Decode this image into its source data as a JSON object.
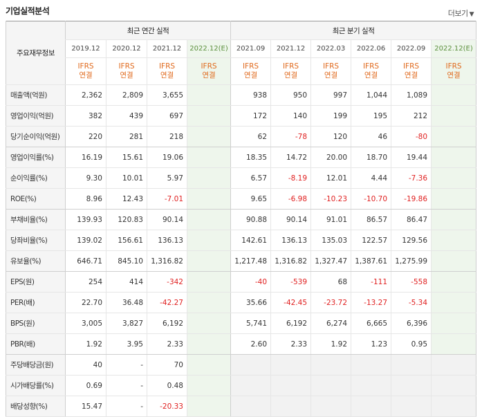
{
  "header": {
    "title": "기업실적분석",
    "more_label": "더보기",
    "more_arrow": "▼"
  },
  "groups": {
    "key_label": "주요재무정보",
    "annual": "최근 연간 실적",
    "quarterly": "최근 분기 실적"
  },
  "periods": [
    "2019.12",
    "2020.12",
    "2021.12",
    "2022.12(E)",
    "2021.09",
    "2021.12",
    "2022.03",
    "2022.06",
    "2022.09",
    "2022.12(E)"
  ],
  "ifrs": {
    "line1": "IFRS",
    "line2": "연결"
  },
  "rows": [
    {
      "label": "매출액(억원)",
      "cells": [
        "2,362",
        "2,809",
        "3,655",
        "",
        "938",
        "950",
        "997",
        "1,044",
        "1,089",
        ""
      ]
    },
    {
      "label": "영업이익(억원)",
      "cells": [
        "382",
        "439",
        "697",
        "",
        "172",
        "140",
        "199",
        "195",
        "212",
        ""
      ]
    },
    {
      "label": "당기순이익(억원)",
      "cells": [
        "220",
        "281",
        "218",
        "",
        "62",
        "-78",
        "120",
        "46",
        "-80",
        ""
      ]
    },
    {
      "label": "영업이익률(%)",
      "cells": [
        "16.19",
        "15.61",
        "19.06",
        "",
        "18.35",
        "14.72",
        "20.00",
        "18.70",
        "19.44",
        ""
      ]
    },
    {
      "label": "순이익률(%)",
      "cells": [
        "9.30",
        "10.01",
        "5.97",
        "",
        "6.57",
        "-8.19",
        "12.01",
        "4.44",
        "-7.36",
        ""
      ]
    },
    {
      "label": "ROE(%)",
      "cells": [
        "8.96",
        "12.43",
        "-7.01",
        "",
        "9.65",
        "-6.98",
        "-10.23",
        "-10.70",
        "-19.86",
        ""
      ]
    },
    {
      "label": "부채비율(%)",
      "cells": [
        "139.93",
        "120.83",
        "90.14",
        "",
        "90.88",
        "90.14",
        "91.01",
        "86.57",
        "86.47",
        ""
      ]
    },
    {
      "label": "당좌비율(%)",
      "cells": [
        "139.02",
        "156.61",
        "136.13",
        "",
        "142.61",
        "136.13",
        "135.03",
        "122.57",
        "129.56",
        ""
      ]
    },
    {
      "label": "유보율(%)",
      "cells": [
        "646.71",
        "845.10",
        "1,316.82",
        "",
        "1,217.48",
        "1,316.82",
        "1,327.47",
        "1,387.61",
        "1,275.99",
        ""
      ]
    },
    {
      "label": "EPS(원)",
      "cells": [
        "254",
        "414",
        "-342",
        "",
        "-40",
        "-539",
        "68",
        "-111",
        "-558",
        ""
      ]
    },
    {
      "label": "PER(배)",
      "cells": [
        "22.70",
        "36.48",
        "-42.27",
        "",
        "35.66",
        "-42.45",
        "-23.72",
        "-13.27",
        "-5.34",
        ""
      ]
    },
    {
      "label": "BPS(원)",
      "cells": [
        "3,005",
        "3,827",
        "6,192",
        "",
        "5,741",
        "6,192",
        "6,274",
        "6,665",
        "6,396",
        ""
      ]
    },
    {
      "label": "PBR(배)",
      "cells": [
        "1.92",
        "3.95",
        "2.33",
        "",
        "2.60",
        "2.33",
        "1.92",
        "1.23",
        "0.95",
        ""
      ]
    },
    {
      "label": "주당배당금(원)",
      "cells": [
        "40",
        "-",
        "70",
        "",
        "",
        "",
        "",
        "",
        "",
        ""
      ]
    },
    {
      "label": "시가배당률(%)",
      "cells": [
        "0.69",
        "-",
        "0.48",
        "",
        "",
        "",
        "",
        "",
        "",
        ""
      ]
    },
    {
      "label": "배당성향(%)",
      "cells": [
        "15.47",
        "-",
        "-20.33",
        "",
        "",
        "",
        "",
        "",
        "",
        ""
      ]
    }
  ],
  "colors": {
    "ifrs_orange": "#e0691c",
    "negative_red": "#e02020",
    "estimate_bg": "#eef6ec",
    "estimate_text": "#5a8f3b"
  }
}
